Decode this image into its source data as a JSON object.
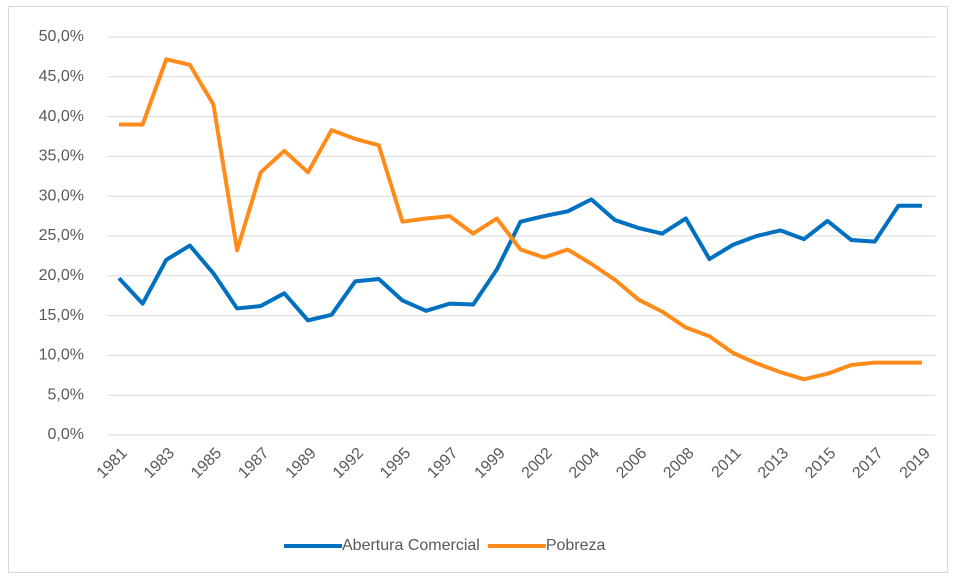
{
  "chart_data": {
    "type": "line",
    "categories": [
      "1981",
      null,
      "1983",
      null,
      "1985",
      null,
      "1987",
      null,
      "1989",
      null,
      "1992",
      null,
      "1995",
      null,
      "1997",
      null,
      "1999",
      null,
      "2002",
      null,
      "2004",
      null,
      "2006",
      null,
      "2008",
      null,
      "2011",
      null,
      "2013",
      null,
      "2015",
      null,
      "2017",
      null,
      "2019"
    ],
    "series": [
      {
        "name": "Abertura Comercial",
        "color": "#0070c0",
        "values": [
          19.7,
          16.5,
          22.0,
          23.8,
          20.3,
          15.9,
          16.2,
          17.8,
          14.4,
          15.1,
          19.3,
          19.6,
          16.9,
          15.6,
          16.5,
          16.4,
          20.8,
          26.8,
          27.5,
          28.1,
          29.6,
          27.0,
          26.0,
          25.3,
          27.2,
          22.1,
          23.9,
          25.0,
          25.7,
          24.6,
          26.9,
          24.5,
          24.3,
          28.8,
          28.8
        ]
      },
      {
        "name": "Pobreza",
        "color": "#ff8c1a",
        "values": [
          39.0,
          39.0,
          47.2,
          46.5,
          41.5,
          23.2,
          33.0,
          35.7,
          33.0,
          38.3,
          37.2,
          36.4,
          26.8,
          27.2,
          27.5,
          25.3,
          27.2,
          23.3,
          22.3,
          23.3,
          21.5,
          19.5,
          17.0,
          15.5,
          13.5,
          12.4,
          10.3,
          9.0,
          7.9,
          7.0,
          7.7,
          8.8,
          9.1,
          9.1,
          9.1
        ]
      }
    ],
    "ylim": [
      0,
      50
    ],
    "yticks": [
      {
        "value": 0,
        "label": "0,0%"
      },
      {
        "value": 5,
        "label": "5,0%"
      },
      {
        "value": 10,
        "label": "10,0%"
      },
      {
        "value": 15,
        "label": "15,0%"
      },
      {
        "value": 20,
        "label": "20,0%"
      },
      {
        "value": 25,
        "label": "25,0%"
      },
      {
        "value": 30,
        "label": "30,0%"
      },
      {
        "value": 35,
        "label": "35,0%"
      },
      {
        "value": 40,
        "label": "40,0%"
      },
      {
        "value": 45,
        "label": "45,0%"
      },
      {
        "value": 50,
        "label": "50,0%"
      }
    ],
    "grid": true,
    "legend": "bottom"
  }
}
